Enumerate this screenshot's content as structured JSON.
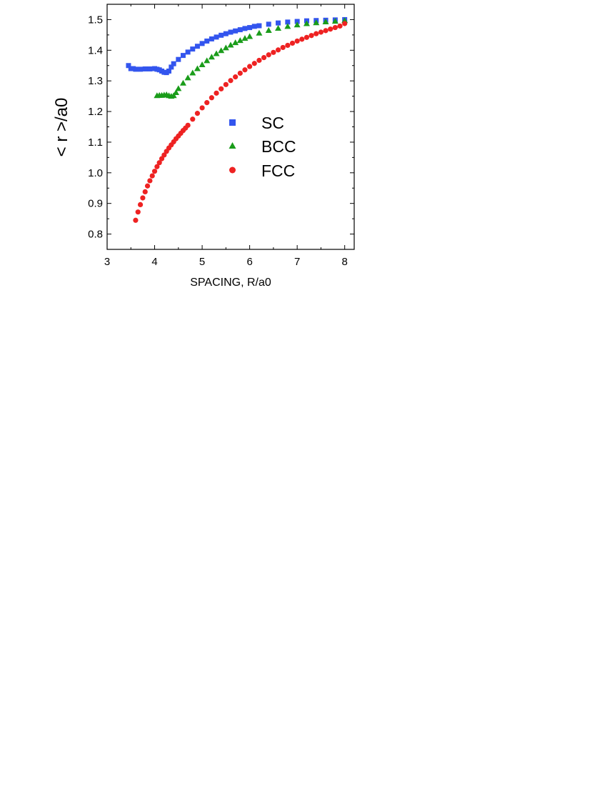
{
  "chart_data": {
    "type": "scatter",
    "xlabel": "SPACING, R/a0",
    "ylabel": "< r >/a0",
    "xlim": [
      3,
      8.2
    ],
    "ylim": [
      0.75,
      1.55
    ],
    "xticks": [
      3,
      4,
      5,
      6,
      7,
      8
    ],
    "yticks": [
      0.8,
      0.9,
      1.0,
      1.1,
      1.2,
      1.3,
      1.4,
      1.5
    ],
    "xtick_labels": [
      "3",
      "4",
      "5",
      "6",
      "7",
      "8"
    ],
    "ytick_labels": [
      "0.8",
      "0.9",
      "1.0",
      "1.1",
      "1.2",
      "1.3",
      "1.4",
      "1.5"
    ],
    "legend_placement": "center-right",
    "series": [
      {
        "name": "SC",
        "marker": "square",
        "color": "#3355ee",
        "x": [
          3.45,
          3.5,
          3.55,
          3.6,
          3.7,
          3.8,
          3.9,
          4.0,
          4.05,
          4.1,
          4.15,
          4.2,
          4.25,
          4.3,
          4.35,
          4.4,
          4.5,
          4.6,
          4.7,
          4.8,
          4.9,
          5.0,
          5.1,
          5.2,
          5.3,
          5.4,
          5.5,
          5.6,
          5.7,
          5.8,
          5.9,
          6.0,
          6.1,
          6.2,
          6.4,
          6.6,
          6.8,
          7.0,
          7.2,
          7.4,
          7.6,
          7.8,
          8.0
        ],
        "y": [
          1.35,
          1.34,
          1.34,
          1.338,
          1.338,
          1.339,
          1.339,
          1.34,
          1.338,
          1.336,
          1.332,
          1.328,
          1.327,
          1.332,
          1.345,
          1.356,
          1.37,
          1.383,
          1.394,
          1.404,
          1.413,
          1.422,
          1.43,
          1.437,
          1.443,
          1.449,
          1.454,
          1.459,
          1.463,
          1.467,
          1.471,
          1.474,
          1.478,
          1.48,
          1.485,
          1.489,
          1.492,
          1.494,
          1.496,
          1.497,
          1.498,
          1.499,
          1.5
        ]
      },
      {
        "name": "BCC",
        "marker": "triangle",
        "color": "#1a9c1a",
        "x": [
          4.05,
          4.1,
          4.15,
          4.2,
          4.25,
          4.3,
          4.35,
          4.4,
          4.45,
          4.5,
          4.6,
          4.7,
          4.8,
          4.9,
          5.0,
          5.1,
          5.2,
          5.3,
          5.4,
          5.5,
          5.6,
          5.7,
          5.8,
          5.9,
          6.0,
          6.2,
          6.4,
          6.6,
          6.8,
          7.0,
          7.2,
          7.4,
          7.6,
          7.8,
          8.0
        ],
        "y": [
          1.252,
          1.253,
          1.253,
          1.254,
          1.255,
          1.252,
          1.25,
          1.252,
          1.262,
          1.275,
          1.293,
          1.31,
          1.326,
          1.34,
          1.353,
          1.366,
          1.378,
          1.389,
          1.399,
          1.408,
          1.417,
          1.425,
          1.432,
          1.439,
          1.445,
          1.456,
          1.465,
          1.472,
          1.478,
          1.483,
          1.487,
          1.49,
          1.493,
          1.495,
          1.497
        ]
      },
      {
        "name": "FCC",
        "marker": "circle",
        "color": "#ee2222",
        "x": [
          3.6,
          3.65,
          3.7,
          3.75,
          3.8,
          3.85,
          3.9,
          3.95,
          4.0,
          4.05,
          4.1,
          4.15,
          4.2,
          4.25,
          4.3,
          4.35,
          4.4,
          4.45,
          4.5,
          4.55,
          4.6,
          4.65,
          4.7,
          4.8,
          4.9,
          5.0,
          5.1,
          5.2,
          5.3,
          5.4,
          5.5,
          5.6,
          5.7,
          5.8,
          5.9,
          6.0,
          6.1,
          6.2,
          6.3,
          6.4,
          6.5,
          6.6,
          6.7,
          6.8,
          6.9,
          7.0,
          7.1,
          7.2,
          7.3,
          7.4,
          7.5,
          7.6,
          7.7,
          7.8,
          7.9,
          8.0
        ],
        "y": [
          0.845,
          0.872,
          0.896,
          0.918,
          0.938,
          0.957,
          0.974,
          0.99,
          1.005,
          1.02,
          1.033,
          1.046,
          1.058,
          1.07,
          1.081,
          1.091,
          1.101,
          1.111,
          1.12,
          1.129,
          1.138,
          1.146,
          1.155,
          1.175,
          1.194,
          1.212,
          1.229,
          1.245,
          1.26,
          1.274,
          1.288,
          1.301,
          1.313,
          1.325,
          1.336,
          1.347,
          1.357,
          1.367,
          1.376,
          1.385,
          1.393,
          1.401,
          1.409,
          1.416,
          1.423,
          1.43,
          1.436,
          1.442,
          1.448,
          1.454,
          1.459,
          1.464,
          1.469,
          1.474,
          1.479,
          1.487
        ]
      }
    ]
  }
}
